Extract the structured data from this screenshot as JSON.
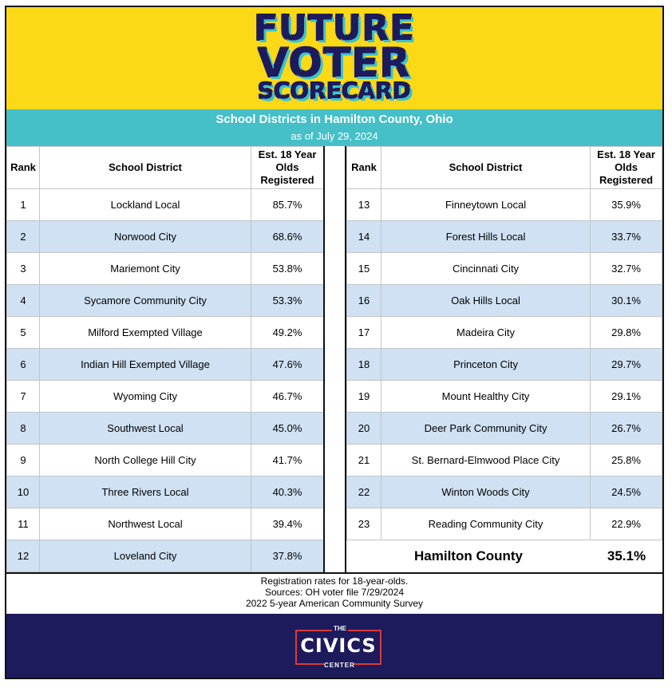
{
  "title": {
    "line1": "FUTURE",
    "line2": "VOTER",
    "line3": "SCORECARD"
  },
  "subtitle": "School Districts in Hamilton County, Ohio",
  "date": "as of July 29, 2024",
  "headers": {
    "rank": "Rank",
    "district": "School District",
    "pct": "Est. 18 Year Olds Registered"
  },
  "left_rows": [
    {
      "rank": "1",
      "district": "Lockland Local",
      "pct": "85.7%"
    },
    {
      "rank": "2",
      "district": "Norwood City",
      "pct": "68.6%"
    },
    {
      "rank": "3",
      "district": "Mariemont City",
      "pct": "53.8%"
    },
    {
      "rank": "4",
      "district": "Sycamore Community City",
      "pct": "53.3%"
    },
    {
      "rank": "5",
      "district": "Milford Exempted Village",
      "pct": "49.2%"
    },
    {
      "rank": "6",
      "district": "Indian Hill Exempted Village",
      "pct": "47.6%"
    },
    {
      "rank": "7",
      "district": "Wyoming City",
      "pct": "46.7%"
    },
    {
      "rank": "8",
      "district": "Southwest Local",
      "pct": "45.0%"
    },
    {
      "rank": "9",
      "district": "North College Hill City",
      "pct": "41.7%"
    },
    {
      "rank": "10",
      "district": "Three Rivers Local",
      "pct": "40.3%"
    },
    {
      "rank": "11",
      "district": "Northwest Local",
      "pct": "39.4%"
    },
    {
      "rank": "12",
      "district": "Loveland City",
      "pct": "37.8%"
    }
  ],
  "right_rows": [
    {
      "rank": "13",
      "district": "Finneytown Local",
      "pct": "35.9%"
    },
    {
      "rank": "14",
      "district": "Forest Hills Local",
      "pct": "33.7%"
    },
    {
      "rank": "15",
      "district": "Cincinnati City",
      "pct": "32.7%"
    },
    {
      "rank": "16",
      "district": "Oak Hills Local",
      "pct": "30.1%"
    },
    {
      "rank": "17",
      "district": "Madeira City",
      "pct": "29.8%"
    },
    {
      "rank": "18",
      "district": "Princeton City",
      "pct": "29.7%"
    },
    {
      "rank": "19",
      "district": "Mount Healthy City",
      "pct": "29.1%"
    },
    {
      "rank": "20",
      "district": "Deer Park Community City",
      "pct": "26.7%"
    },
    {
      "rank": "21",
      "district": "St. Bernard-Elmwood Place City",
      "pct": "25.8%"
    },
    {
      "rank": "22",
      "district": "Winton Woods City",
      "pct": "24.5%"
    },
    {
      "rank": "23",
      "district": "Reading Community City",
      "pct": "22.9%"
    }
  ],
  "county": {
    "name": "Hamilton County",
    "pct": "35.1%"
  },
  "notes": {
    "line1": "Registration rates for 18-year-olds.",
    "line2": "Sources: OH voter file 7/29/2024",
    "line3": "2022 5-year American Community Survey"
  },
  "logo": {
    "the": "THE",
    "civics": "CIVICS",
    "center": "CENTER"
  },
  "colors": {
    "banner": "#fcd916",
    "navy": "#1d1b5c",
    "teal": "#45bfc8",
    "row_alt": "#cfe1f3",
    "logo_red": "#d93a3a"
  }
}
